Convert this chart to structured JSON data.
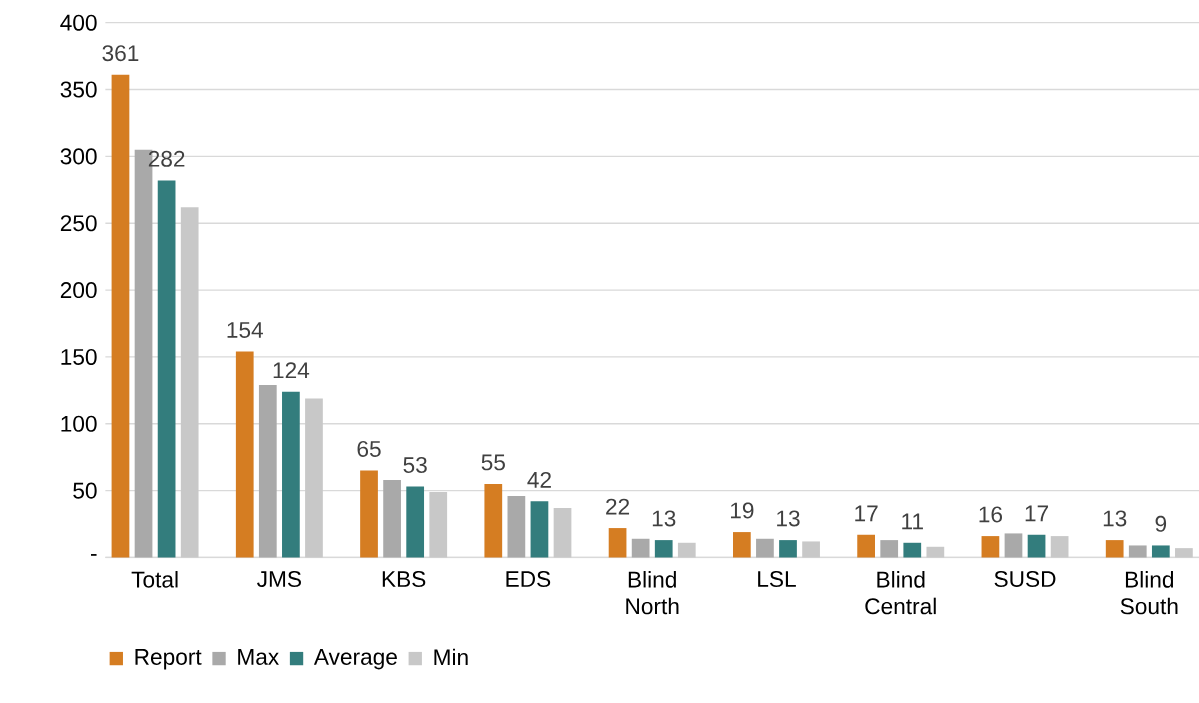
{
  "chart_data": {
    "type": "bar",
    "categories": [
      "Total",
      "JMS",
      "KBS",
      "EDS",
      "Blind North",
      "LSL",
      "Blind Central",
      "SUSD",
      "Blind South"
    ],
    "series": [
      {
        "name": "Report",
        "color": "#d57d22",
        "values": [
          361,
          154,
          65,
          55,
          22,
          19,
          17,
          16,
          13
        ],
        "value_labels": [
          "361",
          "154",
          "65",
          "55",
          "22",
          "19",
          "17",
          "16",
          "13"
        ]
      },
      {
        "name": "Max",
        "color": "#a9a9a9",
        "values": [
          305,
          129,
          58,
          46,
          14,
          14,
          13,
          18,
          9
        ]
      },
      {
        "name": "Average",
        "color": "#337d7d",
        "values": [
          282,
          124,
          53,
          42,
          13,
          13,
          11,
          17,
          9
        ],
        "value_labels": [
          "282",
          "124",
          "53",
          "42",
          "13",
          "13",
          "11",
          "17",
          "9"
        ]
      },
      {
        "name": "Min",
        "color": "#c8c8c8",
        "values": [
          262,
          119,
          49,
          37,
          11,
          12,
          8,
          16,
          7
        ]
      }
    ],
    "ylim": [
      0,
      400
    ],
    "yticks": [
      {
        "value": 0,
        "label": "-"
      },
      50,
      100,
      150,
      200,
      250,
      300,
      350,
      400
    ],
    "grid": "y",
    "legend": "bottom"
  }
}
